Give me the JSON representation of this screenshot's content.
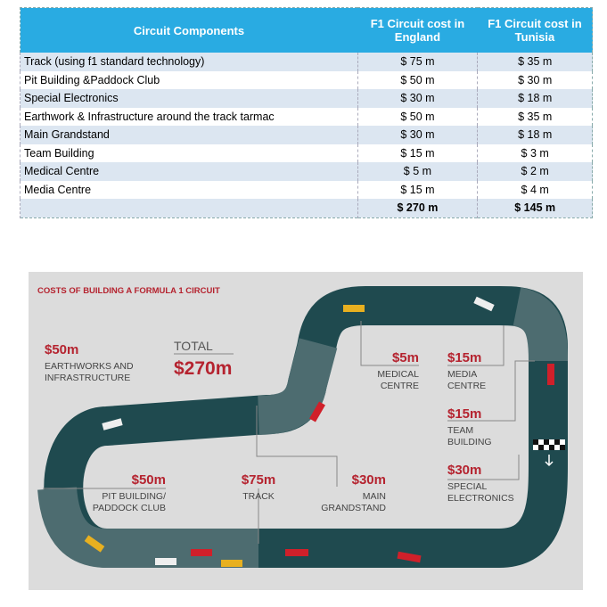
{
  "table": {
    "header": [
      "Circuit Components",
      "F1 Circuit cost  in England",
      "F1 Circuit cost  in Tunisia"
    ],
    "rows": [
      [
        "Track (using f1 standard technology)",
        "$ 75 m",
        "$ 35 m"
      ],
      [
        "Pit Building &Paddock Club",
        "$ 50 m",
        "$ 30 m"
      ],
      [
        "Special Electronics",
        "$ 30 m",
        "$ 18 m"
      ],
      [
        "Earthwork & Infrastructure around the track tarmac",
        "$ 50 m",
        "$ 35 m"
      ],
      [
        "Main Grandstand",
        "$ 30 m",
        "$ 18 m"
      ],
      [
        "Team Building",
        "$ 15 m",
        "$ 3 m"
      ],
      [
        "Medical Centre",
        "$ 5 m",
        "$ 2 m"
      ],
      [
        "Media Centre",
        "$ 15 m",
        "$ 4 m"
      ]
    ],
    "totals": [
      "$ 270 m",
      "$ 145 m"
    ]
  },
  "infographic": {
    "title": "COSTS OF BUILDING A FORMULA 1 CIRCUIT",
    "total_label": "TOTAL",
    "total_amount": "$270m",
    "items": [
      {
        "amount": "$50m",
        "label": [
          "EARTHWORKS AND",
          "INFRASTRUCTURE"
        ]
      },
      {
        "amount": "$5m",
        "label": [
          "MEDICAL",
          "CENTRE"
        ]
      },
      {
        "amount": "$15m",
        "label": [
          "MEDIA",
          "CENTRE"
        ]
      },
      {
        "amount": "$15m",
        "label": [
          "TEAM",
          "BUILDING"
        ]
      },
      {
        "amount": "$30m",
        "label": [
          "SPECIAL",
          "ELECTRONICS"
        ]
      },
      {
        "amount": "$50m",
        "label": [
          "PIT BUILDING/",
          "PADDOCK CLUB"
        ]
      },
      {
        "amount": "$75m",
        "label": [
          "TRACK"
        ]
      },
      {
        "amount": "$30m",
        "label": [
          "MAIN",
          "GRANDSTAND"
        ]
      }
    ]
  }
}
